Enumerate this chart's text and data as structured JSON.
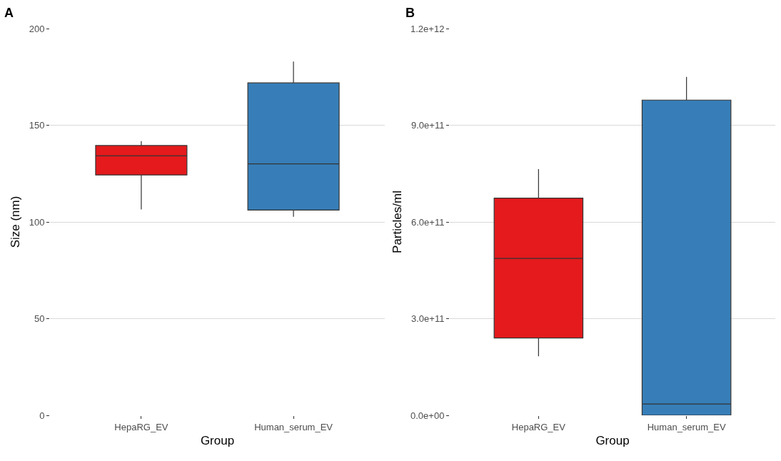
{
  "chart_data": [
    {
      "type": "box",
      "annotations": [
        "A"
      ],
      "xlabel": "Group",
      "ylabel": "Size (nm)",
      "categories": [
        "HepaRG_EV",
        "Human_serum_EV"
      ],
      "colors": [
        "#e41a1c",
        "#377eb8"
      ],
      "boxes": [
        {
          "low": 106.5,
          "q1": 124.3,
          "median": 134.2,
          "q3": 139.5,
          "high": 141.8
        },
        {
          "low": 102.7,
          "q1": 106.1,
          "median": 130,
          "q3": 171.9,
          "high": 182.9
        }
      ],
      "ylim": [
        0,
        200
      ],
      "yticks": [
        0,
        50,
        100,
        150,
        200
      ],
      "grid": "y",
      "legend": false
    },
    {
      "type": "box",
      "annotations": [
        "B"
      ],
      "xlabel": "Group",
      "ylabel": "Particles/ml",
      "categories": [
        "HepaRG_EV",
        "Human_serum_EV"
      ],
      "colors": [
        "#e41a1c",
        "#377eb8"
      ],
      "boxes": [
        {
          "low": 183000000000.0,
          "q1": 240000000000.0,
          "median": 487000000000.0,
          "q3": 674000000000.0,
          "high": 764000000000.0
        },
        {
          "low": 0,
          "q1": 0,
          "median": 35000000000.0,
          "q3": 978000000000.0,
          "high": 1050000000000.0
        }
      ],
      "ylim": [
        0,
        1200000000000.0
      ],
      "yticks": [
        {
          "value": 0,
          "label": "0.0e+00"
        },
        {
          "value": 300000000000.0,
          "label": "3.0e+11"
        },
        {
          "value": 600000000000.0,
          "label": "6.0e+11"
        },
        {
          "value": 900000000000.0,
          "label": "9.0e+11"
        },
        {
          "value": 1200000000000.0,
          "label": "1.2e+12"
        }
      ],
      "grid": "y",
      "legend": false
    }
  ]
}
